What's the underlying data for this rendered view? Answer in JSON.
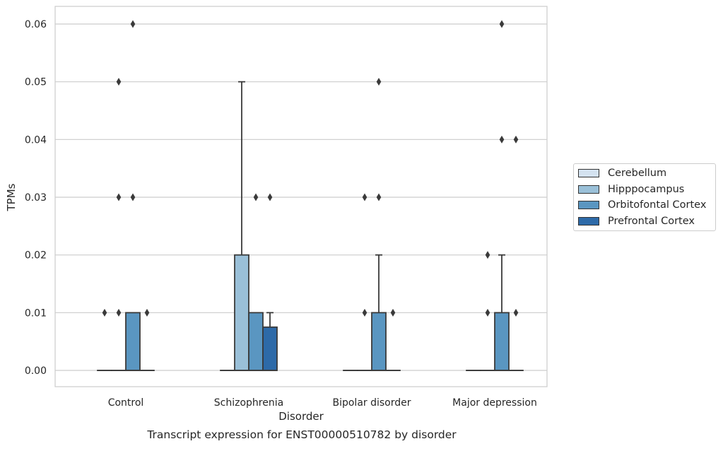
{
  "chart_data": {
    "type": "box",
    "xlabel": "Disorder",
    "ylabel": "TPMs",
    "caption": "Transcript expression for ENST00000510782 by disorder",
    "categories": [
      "Control",
      "Schizophrenia",
      "Bipolar disorder",
      "Major depression"
    ],
    "ylim": [
      -0.003,
      0.063
    ],
    "yticks": [
      "0.00",
      "0.01",
      "0.02",
      "0.03",
      "0.04",
      "0.05",
      "0.06"
    ],
    "grid": true,
    "legend_position": "right",
    "series": [
      {
        "name": "Cerebellum",
        "color": "#d4e2f0",
        "boxes": [
          {
            "q1": 0,
            "median": 0,
            "q3": 0,
            "whislo": 0,
            "whishi": 0,
            "fliers": [
              0.01
            ]
          },
          {
            "q1": 0,
            "median": 0,
            "q3": 0,
            "whislo": 0,
            "whishi": 0,
            "fliers": []
          },
          {
            "q1": 0,
            "median": 0,
            "q3": 0,
            "whislo": 0,
            "whishi": 0,
            "fliers": []
          },
          {
            "q1": 0,
            "median": 0,
            "q3": 0,
            "whislo": 0,
            "whishi": 0,
            "fliers": []
          }
        ]
      },
      {
        "name": "Hipppocampus",
        "color": "#9ac0d8",
        "boxes": [
          {
            "q1": 0,
            "median": 0,
            "q3": 0,
            "whislo": 0,
            "whishi": 0,
            "fliers": [
              0.01,
              0.03,
              0.05
            ]
          },
          {
            "q1": 0,
            "median": 0,
            "q3": 0.02,
            "whislo": 0,
            "whishi": 0.05,
            "fliers": []
          },
          {
            "q1": 0,
            "median": 0,
            "q3": 0,
            "whislo": 0,
            "whishi": 0,
            "fliers": [
              0.01,
              0.03
            ]
          },
          {
            "q1": 0,
            "median": 0,
            "q3": 0,
            "whislo": 0,
            "whishi": 0,
            "fliers": [
              0.01,
              0.02
            ]
          }
        ]
      },
      {
        "name": "Orbitofontal Cortex",
        "color": "#5a96c1",
        "boxes": [
          {
            "q1": 0,
            "median": 0,
            "q3": 0.01,
            "whislo": 0,
            "whishi": 0.01,
            "fliers": [
              0.03,
              0.06
            ]
          },
          {
            "q1": 0,
            "median": 0,
            "q3": 0.01,
            "whislo": 0,
            "whishi": 0.01,
            "fliers": [
              0.03
            ]
          },
          {
            "q1": 0,
            "median": 0,
            "q3": 0.01,
            "whislo": 0,
            "whishi": 0.02,
            "fliers": [
              0.03,
              0.05
            ]
          },
          {
            "q1": 0,
            "median": 0,
            "q3": 0.01,
            "whislo": 0,
            "whishi": 0.02,
            "fliers": [
              0.04,
              0.06
            ]
          }
        ]
      },
      {
        "name": "Prefrontal Cortex",
        "color": "#2d6aa8",
        "boxes": [
          {
            "q1": 0,
            "median": 0,
            "q3": 0,
            "whislo": 0,
            "whishi": 0,
            "fliers": [
              0.01
            ]
          },
          {
            "q1": 0,
            "median": 0,
            "q3": 0.0075,
            "whislo": 0,
            "whishi": 0.01,
            "fliers": [
              0.03
            ]
          },
          {
            "q1": 0,
            "median": 0,
            "q3": 0,
            "whislo": 0,
            "whishi": 0,
            "fliers": [
              0.01
            ]
          },
          {
            "q1": 0,
            "median": 0,
            "q3": 0,
            "whislo": 0,
            "whishi": 0,
            "fliers": [
              0.01,
              0.04
            ]
          }
        ]
      }
    ]
  }
}
